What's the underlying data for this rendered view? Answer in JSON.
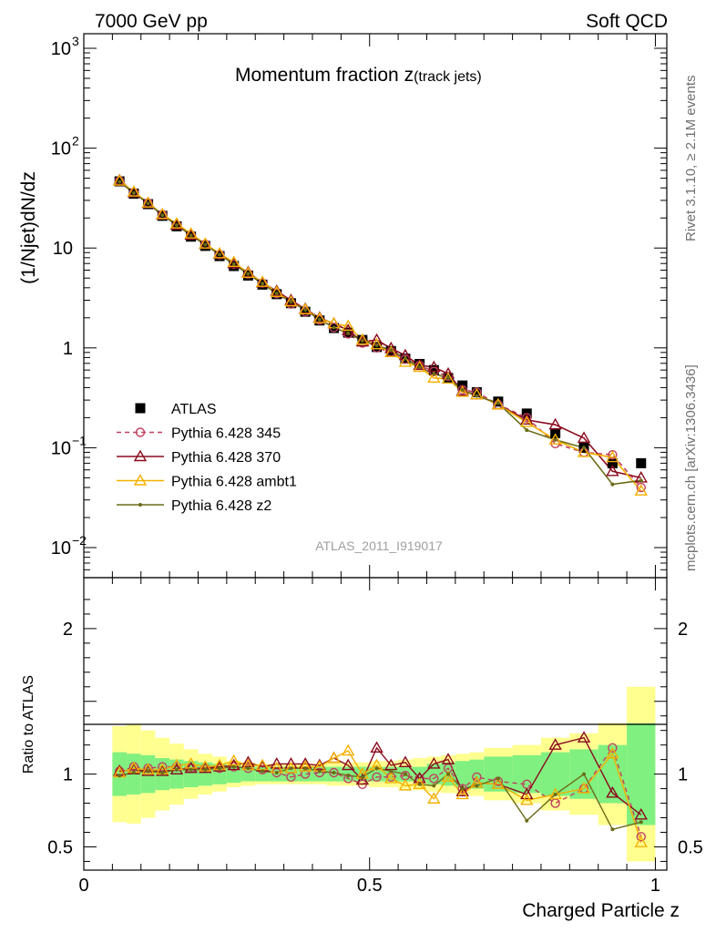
{
  "header": {
    "left": "7000 GeV pp",
    "right": "Soft QCD",
    "side_rivet": "Rivet 3.1.10, ≥ 2.1M events",
    "side_mcplots": "mcplots.cern.ch [arXiv:1306.3436]",
    "analysis_id": "ATLAS_2011_I919017"
  },
  "chart_data": [
    {
      "type": "line",
      "title": "Momentum fraction z",
      "title_suffix": "(track jets)",
      "ylabel": "(1/Njet)dN/dz",
      "xlim": [
        0,
        1.02
      ],
      "ylim": [
        0.005,
        1400
      ],
      "log_y": true,
      "y_ticks": [
        {
          "value": 0.01,
          "base": "10",
          "exp": "−2"
        },
        {
          "value": 0.1,
          "base": "10",
          "exp": "−1"
        },
        {
          "value": 1,
          "base": "1",
          "exp": ""
        },
        {
          "value": 10,
          "base": "10",
          "exp": ""
        },
        {
          "value": 100,
          "base": "10",
          "exp": "2"
        },
        {
          "value": 1000,
          "base": "10",
          "exp": "3"
        }
      ],
      "legend_position": "left",
      "x": [
        0.0625,
        0.0875,
        0.1125,
        0.1375,
        0.1625,
        0.1875,
        0.2125,
        0.2375,
        0.2625,
        0.2875,
        0.3125,
        0.3375,
        0.3625,
        0.3875,
        0.4125,
        0.4375,
        0.4625,
        0.4875,
        0.5125,
        0.5375,
        0.5625,
        0.5875,
        0.6125,
        0.6375,
        0.6625,
        0.6875,
        0.725,
        0.775,
        0.825,
        0.875,
        0.925,
        0.975
      ],
      "series": [
        {
          "name": "ATLAS",
          "color": "#000000",
          "marker": "square",
          "line": "none",
          "values": [
            46.5,
            35,
            27.5,
            21,
            16.5,
            13,
            10.5,
            8.3,
            6.6,
            5.3,
            4.3,
            3.45,
            2.8,
            2.3,
            1.88,
            1.58,
            1.42,
            1.2,
            1.02,
            0.93,
            0.78,
            0.69,
            0.6,
            0.5,
            0.42,
            0.36,
            0.29,
            0.22,
            0.14,
            0.1,
            0.07,
            0.07
          ]
        },
        {
          "name": "Pythia 6.428 345",
          "color": "#c0405f",
          "marker": "circle-open",
          "line": "dashed",
          "values": [
            47,
            36,
            28.3,
            21.7,
            17,
            13.5,
            10.9,
            8.6,
            6.9,
            5.5,
            4.45,
            3.5,
            2.75,
            2.3,
            1.9,
            1.6,
            1.38,
            1.12,
            1.0,
            0.91,
            0.77,
            0.67,
            0.58,
            0.52,
            0.38,
            0.36,
            0.27,
            0.2,
            0.11,
            0.09,
            0.085,
            0.04
          ]
        },
        {
          "name": "Pythia 6.428 370",
          "color": "#8b0a1e",
          "marker": "triangle-open",
          "line": "solid",
          "values": [
            47.5,
            36,
            28,
            21.5,
            17,
            13.5,
            10.9,
            8.7,
            7.0,
            5.7,
            4.5,
            3.7,
            3.0,
            2.45,
            2.0,
            1.75,
            1.5,
            1.15,
            1.2,
            0.99,
            0.84,
            0.67,
            0.64,
            0.55,
            0.37,
            0.34,
            0.27,
            0.19,
            0.17,
            0.125,
            0.058,
            0.05
          ]
        },
        {
          "name": "Pythia 6.428 ambt1",
          "color": "#f4b000",
          "marker": "triangle-open",
          "line": "solid",
          "values": [
            47,
            36.5,
            28.3,
            21.7,
            17.5,
            13.9,
            11,
            8.8,
            7.2,
            5.6,
            4.55,
            3.6,
            2.9,
            2.42,
            1.97,
            1.75,
            1.65,
            1.2,
            1.08,
            0.9,
            0.72,
            0.64,
            0.5,
            0.49,
            0.36,
            0.34,
            0.27,
            0.18,
            0.12,
            0.09,
            0.08,
            0.037
          ]
        },
        {
          "name": "Pythia 6.428 z2",
          "color": "#6b6b18",
          "marker": "dot",
          "line": "solid",
          "values": [
            46,
            35.5,
            28,
            21.3,
            17,
            13.4,
            10.8,
            8.6,
            6.9,
            5.5,
            4.4,
            3.5,
            2.9,
            2.4,
            1.92,
            1.6,
            1.4,
            1.18,
            1.06,
            0.95,
            0.78,
            0.64,
            0.55,
            0.5,
            0.38,
            0.33,
            0.28,
            0.15,
            0.12,
            0.1,
            0.043,
            0.047
          ]
        }
      ]
    },
    {
      "type": "line",
      "ylabel": "Ratio to ATLAS",
      "xlabel": "Charged Particle z",
      "xlim": [
        0,
        1.02
      ],
      "ylim": [
        0.34,
        2.35
      ],
      "x_ticks": [
        {
          "value": 0,
          "label": "0"
        },
        {
          "value": 0.5,
          "label": "0.5"
        },
        {
          "value": 1,
          "label": "1"
        }
      ],
      "y_ticks": [
        {
          "value": 0.5,
          "label": "0.5"
        },
        {
          "value": 1,
          "label": "1"
        },
        {
          "value": 2,
          "label": "2"
        }
      ],
      "bands": {
        "bins": [
          [
            0.05,
            0.075
          ],
          [
            0.075,
            0.1
          ],
          [
            0.1,
            0.125
          ],
          [
            0.125,
            0.15
          ],
          [
            0.15,
            0.175
          ],
          [
            0.175,
            0.2
          ],
          [
            0.2,
            0.225
          ],
          [
            0.225,
            0.25
          ],
          [
            0.25,
            0.275
          ],
          [
            0.275,
            0.3
          ],
          [
            0.3,
            0.325
          ],
          [
            0.325,
            0.35
          ],
          [
            0.35,
            0.375
          ],
          [
            0.375,
            0.4
          ],
          [
            0.4,
            0.425
          ],
          [
            0.425,
            0.45
          ],
          [
            0.45,
            0.475
          ],
          [
            0.475,
            0.5
          ],
          [
            0.5,
            0.525
          ],
          [
            0.525,
            0.55
          ],
          [
            0.55,
            0.575
          ],
          [
            0.575,
            0.6
          ],
          [
            0.6,
            0.625
          ],
          [
            0.625,
            0.65
          ],
          [
            0.65,
            0.675
          ],
          [
            0.675,
            0.7
          ],
          [
            0.7,
            0.75
          ],
          [
            0.75,
            0.8
          ],
          [
            0.8,
            0.85
          ],
          [
            0.85,
            0.9
          ],
          [
            0.9,
            0.95
          ],
          [
            0.95,
            1.0
          ]
        ],
        "stat_color": "#80f080",
        "total_color": "#ffff90",
        "stat_half_width": [
          0.15,
          0.14,
          0.13,
          0.11,
          0.1,
          0.09,
          0.08,
          0.07,
          0.06,
          0.05,
          0.05,
          0.05,
          0.05,
          0.05,
          0.05,
          0.05,
          0.05,
          0.05,
          0.05,
          0.05,
          0.05,
          0.05,
          0.07,
          0.08,
          0.09,
          0.1,
          0.12,
          0.13,
          0.15,
          0.17,
          0.2,
          0.35
        ],
        "total_half_width": [
          0.33,
          0.34,
          0.3,
          0.25,
          0.21,
          0.17,
          0.14,
          0.12,
          0.09,
          0.08,
          0.07,
          0.07,
          0.07,
          0.07,
          0.07,
          0.08,
          0.08,
          0.08,
          0.09,
          0.09,
          0.1,
          0.11,
          0.12,
          0.13,
          0.14,
          0.15,
          0.18,
          0.2,
          0.25,
          0.28,
          0.35,
          0.6
        ]
      },
      "series": [
        {
          "name": "Pythia 6.428 345",
          "values": [
            1.02,
            1.05,
            1.04,
            1.05,
            1.05,
            1.04,
            1.04,
            1.04,
            1.05,
            1.04,
            1.03,
            1.01,
            0.98,
            1.0,
            1.01,
            1.01,
            0.97,
            0.93,
            0.98,
            0.98,
            0.99,
            0.97,
            0.97,
            1.04,
            0.9,
            0.98,
            0.95,
            0.93,
            0.8,
            0.9,
            1.18,
            0.57
          ]
        },
        {
          "name": "Pythia 6.428 370",
          "values": [
            1.02,
            1.03,
            1.02,
            1.02,
            1.03,
            1.04,
            1.04,
            1.05,
            1.06,
            1.08,
            1.05,
            1.07,
            1.07,
            1.07,
            1.06,
            1.11,
            1.06,
            0.96,
            1.18,
            1.06,
            1.08,
            0.97,
            1.07,
            1.1,
            0.88,
            0.94,
            0.93,
            0.86,
            1.2,
            1.25,
            0.87,
            0.72
          ]
        },
        {
          "name": "Pythia 6.428 ambt1",
          "values": [
            1.01,
            1.04,
            1.03,
            1.03,
            1.06,
            1.07,
            1.05,
            1.06,
            1.09,
            1.06,
            1.06,
            1.04,
            1.04,
            1.05,
            1.05,
            1.11,
            1.16,
            1.0,
            1.06,
            0.97,
            0.92,
            0.93,
            0.83,
            0.98,
            0.86,
            0.94,
            0.93,
            0.82,
            0.86,
            0.9,
            1.14,
            0.53
          ]
        },
        {
          "name": "Pythia 6.428 z2",
          "values": [
            0.99,
            1.01,
            1.02,
            1.01,
            1.03,
            1.03,
            1.03,
            1.04,
            1.05,
            1.04,
            1.02,
            1.01,
            1.04,
            1.04,
            1.02,
            1.01,
            0.99,
            0.98,
            1.04,
            1.02,
            1.0,
            0.93,
            0.92,
            1.0,
            0.9,
            0.92,
            0.97,
            0.68,
            0.86,
            1.0,
            0.62,
            0.67
          ]
        }
      ]
    }
  ]
}
